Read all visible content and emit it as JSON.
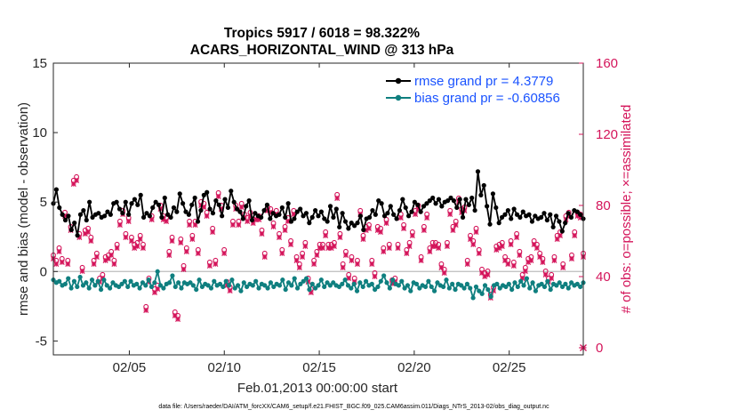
{
  "chart_data": {
    "type": "line",
    "title": "Tropics 5917 / 6018 = 98.322%",
    "subtitle": "ACARS_HORIZONTAL_WIND @ 313 hPa",
    "xlabel": "Feb.01,2013 00:00:00 start",
    "ylabel_left": "rmse and bias (model - observation)",
    "ylabel_right": "# of obs: o=possible; ×=assimilated",
    "footnote": "data file: /Users/raeder/DAI/ATM_forcXX/CAM6_setup/f.e21.FHIST_BGC.f09_025.CAM6assim.011/Diags_NTrS_2013-02/obs_diag_output.nc",
    "x_tick_labels": [
      "02/05",
      "02/10",
      "02/15",
      "02/20",
      "02/25"
    ],
    "x_tick_days": [
      5,
      10,
      15,
      20,
      25
    ],
    "xlim_days": [
      1,
      28.9
    ],
    "left_axis": {
      "ylim": [
        -6,
        15
      ],
      "ticks": [
        -5,
        0,
        5,
        10,
        15
      ]
    },
    "right_axis": {
      "ylim": [
        -4,
        160
      ],
      "ticks": [
        0,
        40,
        80,
        120,
        160
      ]
    },
    "legend": [
      {
        "label": "rmse grand pr = 4.3779",
        "color": "#000000"
      },
      {
        "label": "bias grand pr = -0.60856",
        "color": "#0f7f7f"
      }
    ],
    "colors": {
      "rmse": "#000000",
      "bias": "#0f7f7f",
      "obs": "#d4145a",
      "zero_line": "#bbbbbb",
      "legend_text": "#1a53ff"
    },
    "series": [
      {
        "name": "rmse",
        "values": [
          4.9,
          5.9,
          4.6,
          4.1,
          3.7,
          4.0,
          3.0,
          3.5,
          2.6,
          4.1,
          4.4,
          3.7,
          5.0,
          3.9,
          4.1,
          4.2,
          3.9,
          4.0,
          4.3,
          4.1,
          4.9,
          5.0,
          4.5,
          4.2,
          5.0,
          4.1,
          4.9,
          5.2,
          4.8,
          5.5,
          3.9,
          4.2,
          4.0,
          4.6,
          5.0,
          4.8,
          3.9,
          5.3,
          4.1,
          3.9,
          4.6,
          4.3,
          5.6,
          4.9,
          4.3,
          4.1,
          4.8,
          5.3,
          3.6,
          4.4,
          5.5,
          5.7,
          4.5,
          4.2,
          5.1,
          4.8,
          4.0,
          5.2,
          4.6,
          5.8,
          5.0,
          4.5,
          4.3,
          3.8,
          4.7,
          5.1,
          3.7,
          4.2,
          4.0,
          3.9,
          4.4,
          4.8,
          3.8,
          4.2,
          4.0,
          4.1,
          4.6,
          3.9,
          4.9,
          3.6,
          3.8,
          4.3,
          4.5,
          4.0,
          4.2,
          3.5,
          3.9,
          4.4,
          4.0,
          4.3,
          3.8,
          3.6,
          4.7,
          3.9,
          4.5,
          3.2,
          4.2,
          3.6,
          3.1,
          3.5,
          3.3,
          3.5,
          4.0,
          3.0,
          3.8,
          3.9,
          4.4,
          4.1,
          5.1,
          4.9,
          4.0,
          4.2,
          4.7,
          4.1,
          3.8,
          4.4,
          5.2,
          4.6,
          4.0,
          4.3,
          5.0,
          4.8,
          4.3,
          4.7,
          4.9,
          5.1,
          5.3,
          4.9,
          5.2,
          4.7,
          5.0,
          5.1,
          5.3,
          5.1,
          4.6,
          5.2,
          3.9,
          5.2,
          4.8,
          5.3,
          4.4,
          7.2,
          5.5,
          6.2,
          4.7,
          3.4,
          5.6,
          4.6,
          3.5,
          3.9,
          4.1,
          4.4,
          3.8,
          4.5,
          4.1,
          3.9,
          4.3,
          4.0,
          4.1,
          3.6,
          4.0,
          3.8,
          3.9,
          4.2,
          3.7,
          4.1,
          3.2,
          4.0,
          3.6,
          2.9,
          3.5,
          4.2,
          3.9,
          4.4,
          4.3,
          4.1,
          3.8
        ],
        "plotted": true
      },
      {
        "name": "bias",
        "values": [
          -0.6,
          -0.8,
          -0.7,
          -1.0,
          -0.9,
          -0.5,
          -1.2,
          -0.7,
          -1.1,
          -0.4,
          -1.0,
          -0.8,
          -1.2,
          -0.6,
          -1.0,
          -0.7,
          -1.3,
          -0.6,
          -1.0,
          -1.2,
          -0.8,
          -1.0,
          -1.1,
          -0.9,
          -0.7,
          -1.1,
          -0.7,
          -1.0,
          -0.9,
          -1.2,
          -0.8,
          -1.0,
          -0.6,
          -1.1,
          -0.8,
          0.0,
          -1.0,
          -1.2,
          -0.9,
          -0.8,
          -0.3,
          -1.1,
          -0.8,
          -1.2,
          -0.8,
          -0.9,
          -0.8,
          -1.0,
          -1.3,
          -0.6,
          -1.1,
          -0.9,
          -1.0,
          -1.2,
          -0.7,
          -1.0,
          -0.9,
          -1.1,
          -0.7,
          -1.0,
          -0.6,
          -1.2,
          -1.0,
          -1.4,
          -0.8,
          -1.1,
          -0.9,
          -1.0,
          -0.7,
          -1.2,
          -0.9,
          -1.0,
          -1.2,
          -0.8,
          -1.1,
          -0.9,
          -1.0,
          -0.6,
          -1.3,
          -0.8,
          -1.0,
          -0.5,
          -1.2,
          -0.9,
          -0.7,
          -0.5,
          -1.3,
          -0.9,
          -1.2,
          -1.0,
          -0.6,
          -1.1,
          -0.8,
          -1.0,
          -0.8,
          -1.0,
          -1.1,
          -0.9,
          -0.6,
          -1.0,
          -1.2,
          -0.9,
          -1.4,
          -0.8,
          -1.1,
          -0.7,
          -1.0,
          -0.9,
          -1.3,
          -1.1,
          -0.7,
          -0.3,
          -0.8,
          -1.2,
          -0.6,
          -0.9,
          -1.0,
          -0.7,
          -1.2,
          -1.0,
          -1.4,
          -0.8,
          -0.9,
          -1.2,
          -1.0,
          -1.1,
          -0.7,
          -1.1,
          -1.4,
          -0.8,
          -1.0,
          -1.1,
          -0.6,
          -1.2,
          -0.9,
          -1.3,
          -0.9,
          -1.0,
          -1.2,
          -0.9,
          -1.2,
          -1.9,
          -1.1,
          -1.4,
          -1.6,
          -1.0,
          -1.3,
          -1.8,
          -1.0,
          -0.9,
          -1.2,
          -1.0,
          -1.1,
          -0.9,
          -1.3,
          -0.8,
          -1.1,
          -0.7,
          -1.0,
          -0.5,
          -1.2,
          -0.8,
          -1.4,
          -1.0,
          -0.9,
          -1.1,
          -0.7,
          -1.3,
          -0.9,
          -1.0,
          -0.8,
          -1.1,
          -0.9,
          -1.2,
          -0.8,
          -1.0,
          -0.9,
          -1.1,
          -0.8
        ],
        "plotted": true
      },
      {
        "name": "obs",
        "markers": "o and ×",
        "values": [
          51,
          48,
          55,
          49,
          75,
          48,
          67,
          93,
          95,
          63,
          44,
          65,
          66,
          61,
          48,
          52,
          38,
          40,
          50,
          51,
          53,
          48,
          57,
          70,
          76,
          63,
          72,
          61,
          57,
          58,
          62,
          57,
          22,
          38,
          73,
          32,
          34,
          79,
          73,
          72,
          53,
          61,
          19,
          17,
          60,
          45,
          55,
          70,
          62,
          70,
          54,
          81,
          80,
          75,
          47,
          66,
          48,
          86,
          79,
          54,
          36,
          33,
          70,
          79,
          70,
          80,
          74,
          72,
          75,
          71,
          73,
          73,
          65,
          52,
          78,
          77,
          69,
          76,
          63,
          54,
          67,
          72,
          59,
          76,
          50,
          46,
          52,
          58,
          38,
          32,
          48,
          53,
          57,
          57,
          64,
          57,
          57,
          58,
          85,
          63,
          46,
          53,
          40,
          50,
          38,
          48,
          76,
          62,
          67,
          68,
          48,
          41,
          67,
          66,
          55,
          71,
          57,
          37,
          38,
          57,
          74,
          68,
          54,
          58,
          64,
          76,
          79,
          50,
          67,
          74,
          55,
          58,
          58,
          57,
          46,
          43,
          58,
          76,
          67,
          70,
          83,
          77,
          78,
          48,
          62,
          59,
          66,
          54,
          43,
          41,
          42,
          29,
          33,
          56,
          57,
          58,
          50,
          48,
          59,
          47,
          63,
          53,
          40,
          44,
          49,
          50,
          59,
          57,
          52,
          49,
          42,
          38,
          40,
          50,
          62,
          64,
          46,
          73,
          75,
          51,
          64,
          75,
          74,
          52
        ],
        "plotted": true
      }
    ]
  }
}
